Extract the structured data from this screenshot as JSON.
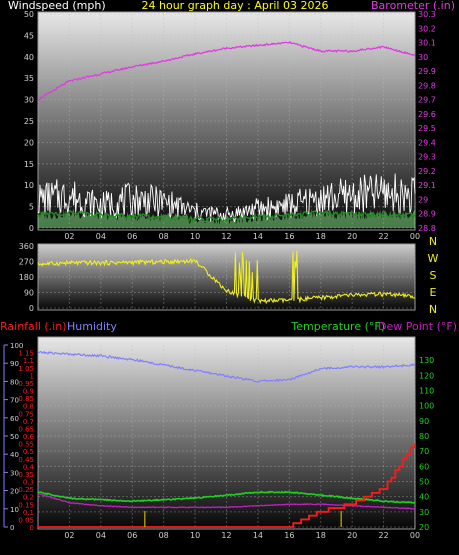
{
  "header": {
    "left": "Windspeed (mph)",
    "center": "24 hour graph day : April 03 2026",
    "right": "Barometer (.in)"
  },
  "colors": {
    "gust": "#ffffff",
    "wind_avg": "#3fbf3f",
    "wind_fill": "#7fd97f",
    "barometer": "#e23ae2",
    "direction": "#f0f020",
    "humidity": "#8080ff",
    "temperature": "#20d020",
    "dewpoint": "#c020c0",
    "rainfall": "#ff1a1a",
    "rain_ticks": "#c8b400",
    "header_center": "#ffff00"
  },
  "x_axis": {
    "labels": [
      "02",
      "04",
      "06",
      "08",
      "10",
      "12",
      "14",
      "16",
      "18",
      "20",
      "22",
      "00"
    ]
  },
  "panel2_labels": [
    "N",
    "W",
    "S",
    "E",
    "N"
  ],
  "panel3": {
    "rain_label": "Rainfall (.in)",
    "humidity_label": "Humidity",
    "temp_label": "Temperature (°F)",
    "dew_label": "Dew Point (°F)"
  },
  "chart_data": [
    {
      "type": "line",
      "x": [
        "00",
        "02",
        "04",
        "06",
        "08",
        "10",
        "12",
        "14",
        "16",
        "18",
        "20",
        "22",
        "24"
      ],
      "y_left": {
        "ylim": [
          0,
          50
        ],
        "ticks": [
          "0",
          "5",
          "10",
          "15",
          "20",
          "25",
          "30",
          "35",
          "40",
          "45",
          "50"
        ]
      },
      "y_right": {
        "ylim": [
          28.8,
          30.3
        ],
        "ticks": [
          "28.8",
          "28.9",
          "29",
          "29.1",
          "29.2",
          "29.3",
          "29.4",
          "29.5",
          "29.6",
          "29.7",
          "29.8",
          "29.9",
          "30",
          "30.1",
          "30.2",
          "30.3"
        ]
      },
      "series": [
        {
          "key": "gust",
          "values": [
            9,
            10,
            7,
            9,
            8,
            5,
            4,
            6,
            7,
            9,
            10,
            11,
            10
          ]
        },
        {
          "key": "wind_avg",
          "values": [
            3,
            3.5,
            3,
            2.8,
            2.5,
            2,
            2,
            2.5,
            3,
            3.5,
            3,
            3.2,
            3
          ]
        },
        {
          "key": "barometer",
          "axis": "right",
          "values": [
            29.7,
            29.83,
            29.88,
            29.93,
            29.97,
            30.02,
            30.06,
            30.08,
            30.1,
            30.04,
            30.04,
            30.07,
            30.01
          ]
        }
      ]
    },
    {
      "type": "line",
      "x": [
        "00",
        "02",
        "04",
        "06",
        "08",
        "10",
        "12",
        "14",
        "16",
        "18",
        "20",
        "22",
        "24"
      ],
      "y_left": {
        "ylim": [
          0,
          360
        ],
        "ticks": [
          "0",
          "90",
          "180",
          "270",
          "360"
        ]
      },
      "series": [
        {
          "key": "direction",
          "values": [
            255,
            262,
            262,
            265,
            268,
            275,
            100,
            40,
            45,
            60,
            75,
            80,
            65
          ]
        }
      ]
    },
    {
      "type": "line",
      "x": [
        "00",
        "02",
        "04",
        "06",
        "08",
        "10",
        "12",
        "14",
        "16",
        "18",
        "20",
        "22",
        "24"
      ],
      "y_rain": {
        "ylim": [
          0,
          1.2
        ],
        "ticks": [
          "0",
          "0.05",
          "0.1",
          "0.15",
          "0.2",
          "0.25",
          "0.3",
          "0.35",
          "0.4",
          "0.45",
          "0.5",
          "0.55",
          "0.6",
          "0.65",
          "0.7",
          "0.75",
          "0.8",
          "0.85",
          "0.9",
          "0.95",
          "1",
          "1.05",
          "1.1",
          "1.15"
        ]
      },
      "y_humidity": {
        "ylim": [
          0,
          100
        ],
        "ticks": [
          "0",
          "10",
          "20",
          "30",
          "40",
          "50",
          "60",
          "70",
          "80",
          "90",
          "100"
        ]
      },
      "y_temp": {
        "ylim": [
          20,
          140
        ],
        "ticks": [
          "20",
          "30",
          "40",
          "50",
          "60",
          "70",
          "80",
          "90",
          "100",
          "110",
          "120",
          "130"
        ]
      },
      "series": [
        {
          "key": "humidity",
          "axis": "humidity",
          "values": [
            96,
            95,
            94,
            92,
            89,
            86,
            83,
            80,
            81,
            87,
            88,
            88,
            89
          ]
        },
        {
          "key": "temperature",
          "axis": "temp",
          "values": [
            43,
            39,
            38,
            37,
            38,
            39,
            41,
            43,
            43,
            41,
            39,
            37,
            36
          ]
        },
        {
          "key": "dewpoint",
          "axis": "temp",
          "values": [
            42,
            36,
            34,
            33,
            33,
            33,
            33,
            34,
            35,
            35,
            34,
            33,
            32
          ]
        },
        {
          "key": "rainfall",
          "axis": "rain",
          "values": [
            0,
            0,
            0,
            0,
            0,
            0,
            0,
            0,
            0,
            0.1,
            0.15,
            0.25,
            0.55
          ]
        }
      ]
    }
  ]
}
